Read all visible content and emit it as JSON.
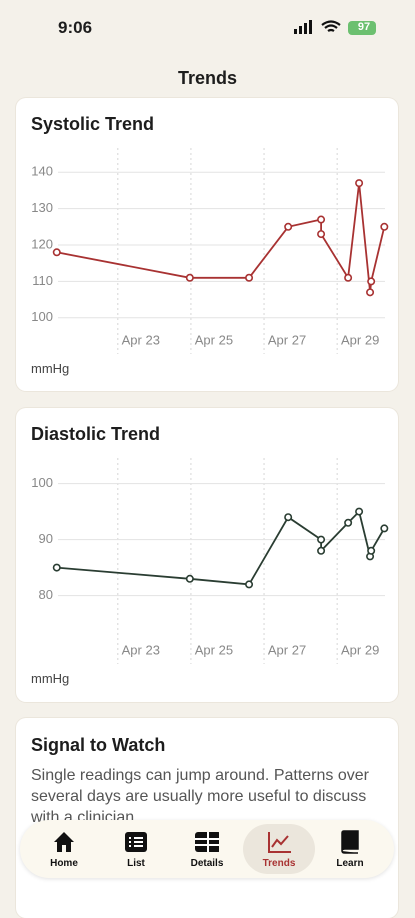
{
  "status_bar": {
    "time": "9:06",
    "battery": "97"
  },
  "header": {
    "title": "Trends"
  },
  "chart_data": [
    {
      "type": "line",
      "title": "Systolic Trend",
      "y_label": "mmHg",
      "color": "#a83232",
      "x": [
        21.33,
        24.97,
        26.59,
        27.66,
        28.56,
        28.56,
        29.3,
        29.6,
        29.9,
        29.93,
        30.29
      ],
      "values": [
        118,
        111,
        111,
        125,
        127,
        123,
        111,
        137,
        107,
        110,
        125
      ],
      "xlim": [
        21.2,
        30.5
      ],
      "xticks": [
        {
          "value": 23,
          "label": "Apr 23"
        },
        {
          "value": 25,
          "label": "Apr 25"
        },
        {
          "value": 27,
          "label": "Apr 27"
        },
        {
          "value": 29,
          "label": "Apr 29"
        }
      ],
      "ylim": [
        95,
        145
      ],
      "yticks": [
        100,
        110,
        120,
        130,
        140
      ],
      "grid": true
    },
    {
      "type": "line",
      "title": "Diastolic Trend",
      "y_label": "mmHg",
      "color": "#2a3d32",
      "x": [
        21.33,
        24.97,
        26.59,
        27.66,
        28.56,
        28.56,
        29.3,
        29.6,
        29.9,
        29.93,
        30.29
      ],
      "values": [
        85,
        83,
        82,
        94,
        90,
        88,
        93,
        95,
        87,
        88,
        92
      ],
      "xlim": [
        21.2,
        30.5
      ],
      "xticks": [
        {
          "value": 23,
          "label": "Apr 23"
        },
        {
          "value": 25,
          "label": "Apr 25"
        },
        {
          "value": 27,
          "label": "Apr 27"
        },
        {
          "value": 29,
          "label": "Apr 29"
        }
      ],
      "ylim": [
        71,
        103.5
      ],
      "yticks": [
        80,
        90,
        100
      ],
      "grid": true
    }
  ],
  "card": {
    "title": "Signal to Watch",
    "text": "Single readings can jump around. Patterns over several days are usually more useful to discuss with a clinician."
  },
  "tab_bar": {
    "tabs": [
      "Home",
      "List",
      "Details",
      "Trends",
      "Learn"
    ],
    "selected": 3
  }
}
